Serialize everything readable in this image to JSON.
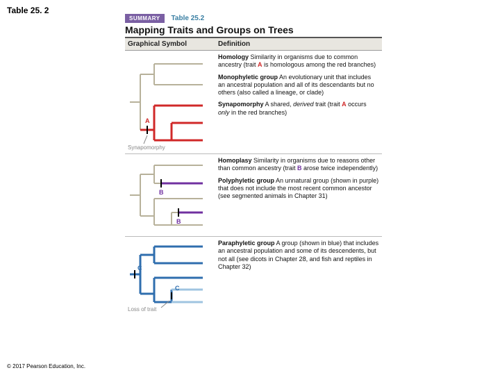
{
  "slide_title": "Table 25. 2",
  "copyright": "© 2017 Pearson Education, Inc.",
  "figure": {
    "summary_badge": "SUMMARY",
    "table_label": "Table 25.2",
    "title": "Mapping Traits and Groups on Trees",
    "col_headers": {
      "left": "Graphical Symbol",
      "right": "Definition"
    },
    "colors": {
      "base_branch": "#b7b19a",
      "red": "#d02828",
      "purple": "#7030a0",
      "blue": "#2f6eae",
      "light_blue": "#9fc4e0",
      "label_gray": "#888888"
    },
    "row1": {
      "trait_letter": "A",
      "trait_caption": "Synapomorphy",
      "defs": [
        {
          "term": "Homology",
          "rest_html": "Similarity in organisms due to common ancestry (trait <span class='letter-a'>A</span> is homologous among the red branches)"
        },
        {
          "term": "Monophyletic group",
          "rest_html": "An evolutionary unit that includes an ancestral population and all of its descendants but no others (also called a lineage, or clade)"
        },
        {
          "term": "Synapomorphy",
          "rest_html": "A shared, <span class='em'>derived</span> trait (trait <span class='letter-a'>A</span> occurs <span class='em'>only</span> in the red branches)"
        }
      ]
    },
    "row2": {
      "trait_letter": "B",
      "defs": [
        {
          "term": "Homoplasy",
          "rest_html": "Similarity in organisms due to reasons other than common ancestry (trait <span class='letter-b'>B</span> arose twice independently)"
        },
        {
          "term": "Polyphyletic group",
          "rest_html": "An unnatural group (shown in purple) that does not include the most recent common ancestor (see segmented animals in Chapter 31)"
        }
      ]
    },
    "row3": {
      "trait_letter": "C",
      "loss_label": "Loss of trait",
      "defs": [
        {
          "term": "Paraphyletic group",
          "rest_html": "A group (shown in blue) that includes an ancestral population and some of its descendents, but not all (see dicots in Chapter 28, and fish and reptiles in Chapter 32)"
        }
      ]
    }
  }
}
